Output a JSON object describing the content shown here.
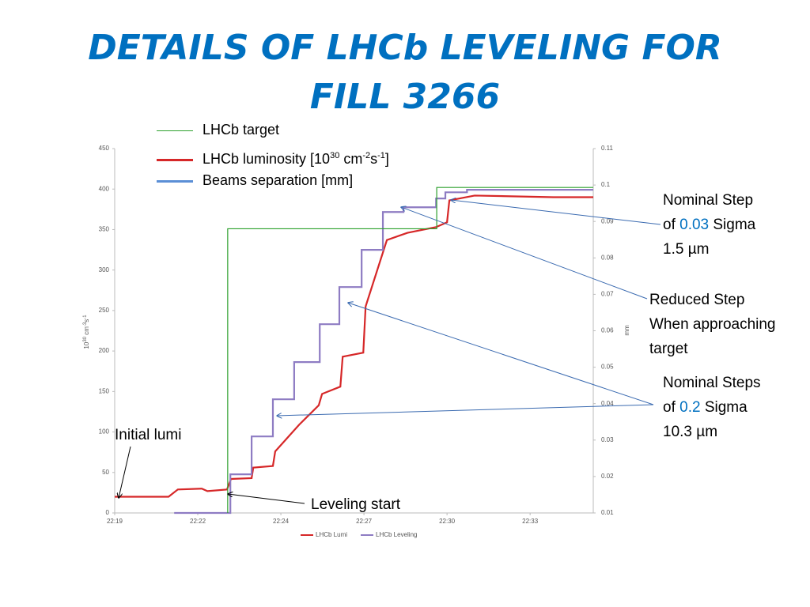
{
  "header": {
    "title": [
      "DETAILS OF LHCb LEVELING FOR",
      "FILL 3266"
    ]
  },
  "legend_overlay": [
    {
      "color": "#2ca02c",
      "parts": [
        "LHCb target"
      ]
    },
    {
      "color": "#d62728",
      "parts": [
        "LHCb luminosity [10",
        "30",
        " cm",
        "-2",
        "s",
        "-1",
        "]"
      ]
    },
    {
      "color": "#5b8fd6",
      "parts": [
        "Beams separation [mm]"
      ]
    }
  ],
  "annotations": {
    "nominal_step": [
      "Nominal Step",
      "of ",
      "0.03",
      " Sigma",
      "1.5 µm"
    ],
    "reduced_step": [
      "Reduced Step",
      "When approaching",
      "target"
    ],
    "nominal_steps": [
      "Nominal Steps",
      "of ",
      "0.2",
      " Sigma",
      "10.3 µm"
    ],
    "initial_lumi": "Initial lumi",
    "leveling_start": "Leveling start"
  },
  "chart_data": {
    "type": "line",
    "ylabel": [
      "10",
      "30",
      " cm",
      "-3",
      "s",
      "-1"
    ],
    "y2label": "mm",
    "xlim": [
      0,
      14.4
    ],
    "xticks": [
      {
        "value": 0,
        "label": "22:19"
      },
      {
        "value": 2.5,
        "label": "22:22"
      },
      {
        "value": 5,
        "label": "22:24"
      },
      {
        "value": 7.5,
        "label": "22:27"
      },
      {
        "value": 10,
        "label": "22:30"
      },
      {
        "value": 12.5,
        "label": "22:33"
      }
    ],
    "ylim": [
      0,
      450
    ],
    "yticks": [
      0,
      50,
      100,
      150,
      200,
      250,
      300,
      350,
      400,
      450
    ],
    "y2lim": [
      0.01,
      0.11
    ],
    "y2ticks": [
      0.01,
      0.02,
      0.03,
      0.04,
      0.05,
      0.06,
      0.07,
      0.08,
      0.09,
      0.1,
      0.11
    ],
    "grid": false,
    "series": [
      {
        "name": "LHCb Lumi",
        "color": "#d62728",
        "x": [
          0,
          1.62,
          1.9,
          2.62,
          2.79,
          3.38,
          3.5,
          4.12,
          4.17,
          4.76,
          4.83,
          5.55,
          6.14,
          6.24,
          6.79,
          6.86,
          7.48,
          7.55,
          8.19,
          8.81,
          9.67,
          10,
          10.07,
          10.83,
          13.2,
          14.4
        ],
        "values": [
          20,
          20,
          29,
          30,
          27,
          29,
          42,
          43,
          56,
          58,
          76,
          109,
          133,
          147,
          156,
          193,
          198,
          255,
          337,
          346,
          353,
          359,
          386,
          392,
          390,
          390
        ]
      },
      {
        "name": "LHCb Leveling",
        "color": "#8e7cc3",
        "axis": "y2",
        "x": [
          1.79,
          3.48,
          3.48,
          4.12,
          4.12,
          4.76,
          4.76,
          5.4,
          5.4,
          6.17,
          6.17,
          6.76,
          6.76,
          7.43,
          7.43,
          8.07,
          8.07,
          8.69,
          8.69,
          9.67,
          9.67,
          9.95,
          9.95,
          10.6,
          10.6,
          14.4
        ],
        "values": [
          0.01,
          0.01,
          0.0206,
          0.0206,
          0.031,
          0.031,
          0.0412,
          0.0412,
          0.0514,
          0.0514,
          0.0618,
          0.0618,
          0.072,
          0.072,
          0.0822,
          0.0822,
          0.0926,
          0.0926,
          0.0939,
          0.0939,
          0.0963,
          0.0963,
          0.098,
          0.098,
          0.0987,
          0.0987
        ]
      },
      {
        "color": "#2ca02c",
        "legend": false,
        "x": [
          3.4,
          3.4,
          9.69,
          9.69,
          14.4
        ],
        "values": [
          0,
          351,
          351,
          402,
          402
        ]
      }
    ]
  }
}
